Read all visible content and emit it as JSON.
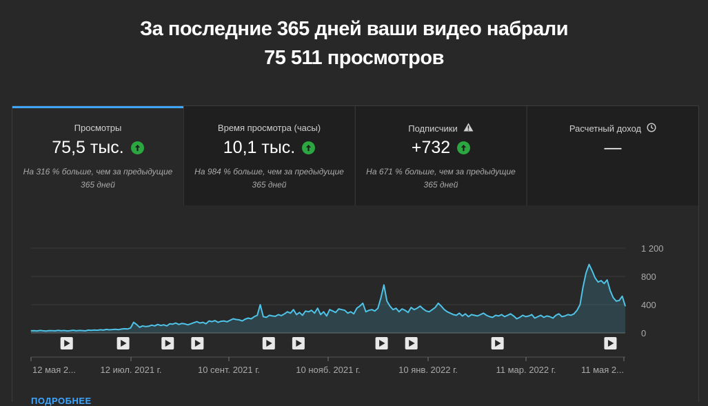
{
  "header": {
    "line1": "За последние 365 дней ваши видео набрали",
    "line2": "75 511 просмотров"
  },
  "tabs": [
    {
      "title": "Просмотры",
      "value": "75,5 тыс.",
      "trend": "up",
      "desc_line1": "На 316 % больше, чем за предыдущие",
      "desc_line2": "365 дней",
      "active": true
    },
    {
      "title": "Время просмотра (часы)",
      "value": "10,1 тыс.",
      "trend": "up",
      "desc_line1": "На 984 % больше, чем за предыдущие",
      "desc_line2": "365 дней",
      "active": false
    },
    {
      "title": "Подписчики",
      "value": "+732",
      "trend": "up",
      "icon": "warning-icon",
      "desc_line1": "На 671 % больше, чем за предыдущие",
      "desc_line2": "365 дней",
      "active": false
    },
    {
      "title": "Расчетный доход",
      "value": "—",
      "icon": "clock-icon",
      "active": false
    }
  ],
  "colors": {
    "accent": "#3ea6ff",
    "series": "#4fc3e8",
    "up": "#2ba640",
    "background": "#282828"
  },
  "chart_data": {
    "type": "area",
    "y_ticks": [
      "1 200",
      "800",
      "400",
      "0"
    ],
    "y_tick_values": [
      1200,
      800,
      400,
      0
    ],
    "ylim": [
      0,
      1200
    ],
    "x_labels": [
      "12 мая 2...",
      "12 июл. 2021 г.",
      "10 сент. 2021 г.",
      "10 нояб. 2021 г.",
      "10 янв. 2022 г.",
      "11 мар. 2022 г.",
      "11 мая 2..."
    ],
    "x_start": "2021-05-12",
    "x_end": "2022-05-11",
    "grid": true,
    "series": [
      {
        "values": [
          30,
          32,
          28,
          35,
          30,
          27,
          33,
          31,
          29,
          36,
          30,
          34,
          28,
          32,
          38,
          30,
          35,
          33,
          29,
          40,
          36,
          42,
          38,
          45,
          40,
          50,
          44,
          48,
          52,
          46,
          55,
          60,
          56,
          70,
          150,
          120,
          80,
          100,
          90,
          95,
          110,
          100,
          120,
          105,
          115,
          100,
          130,
          125,
          140,
          120,
          135,
          128,
          115,
          130,
          145,
          160,
          140,
          150,
          130,
          170,
          160,
          175,
          150,
          165,
          170,
          158,
          180,
          200,
          190,
          185,
          170,
          195,
          210,
          200,
          230,
          250,
          400,
          230,
          220,
          250,
          240,
          235,
          260,
          245,
          270,
          300,
          280,
          330,
          260,
          290,
          250,
          310,
          300,
          320,
          280,
          350,
          260,
          300,
          240,
          330,
          310,
          290,
          340,
          330,
          320,
          280,
          300,
          270,
          350,
          380,
          420,
          300,
          320,
          330,
          310,
          350,
          500,
          680,
          450,
          380,
          330,
          350,
          300,
          340,
          320,
          290,
          360,
          330,
          350,
          380,
          340,
          310,
          300,
          330,
          360,
          420,
          380,
          330,
          300,
          280,
          260,
          250,
          280,
          240,
          270,
          230,
          260,
          250,
          240,
          260,
          280,
          250,
          230,
          220,
          250,
          240,
          260,
          230,
          250,
          270,
          240,
          200,
          220,
          250,
          230,
          240,
          260,
          210,
          230,
          250,
          220,
          240,
          230,
          210,
          250,
          270,
          230,
          240,
          260,
          250,
          270,
          320,
          400,
          650,
          850,
          970,
          880,
          780,
          720,
          740,
          700,
          750,
          600,
          500,
          450,
          460,
          520,
          380
        ]
      }
    ],
    "video_markers": [
      0.06,
      0.155,
      0.23,
      0.28,
      0.4,
      0.45,
      0.59,
      0.64,
      0.785,
      0.975
    ]
  },
  "footer_link": "ПОДРОБНЕЕ"
}
